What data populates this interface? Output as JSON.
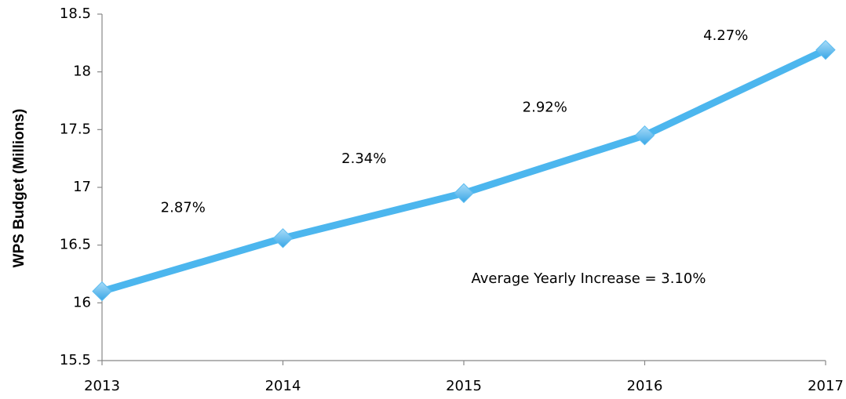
{
  "chart_data": {
    "type": "line",
    "y_label": "WPS Budget (Millions)",
    "categories": [
      "2013",
      "2014",
      "2015",
      "2016",
      "2017"
    ],
    "series": [
      {
        "name": "WPS Budget",
        "color": "#4cb6ee",
        "values": [
          16.1,
          16.56,
          16.95,
          17.45,
          18.19
        ]
      }
    ],
    "ylim": [
      15.5,
      18.5
    ],
    "yticks": [
      15.5,
      16,
      16.5,
      17,
      17.5,
      18,
      18.5
    ],
    "grid": false,
    "annotations": [
      "2.87%",
      "2.34%",
      "2.92%",
      "4.27%"
    ],
    "note": "Average Yearly Increase = 3.10%"
  }
}
